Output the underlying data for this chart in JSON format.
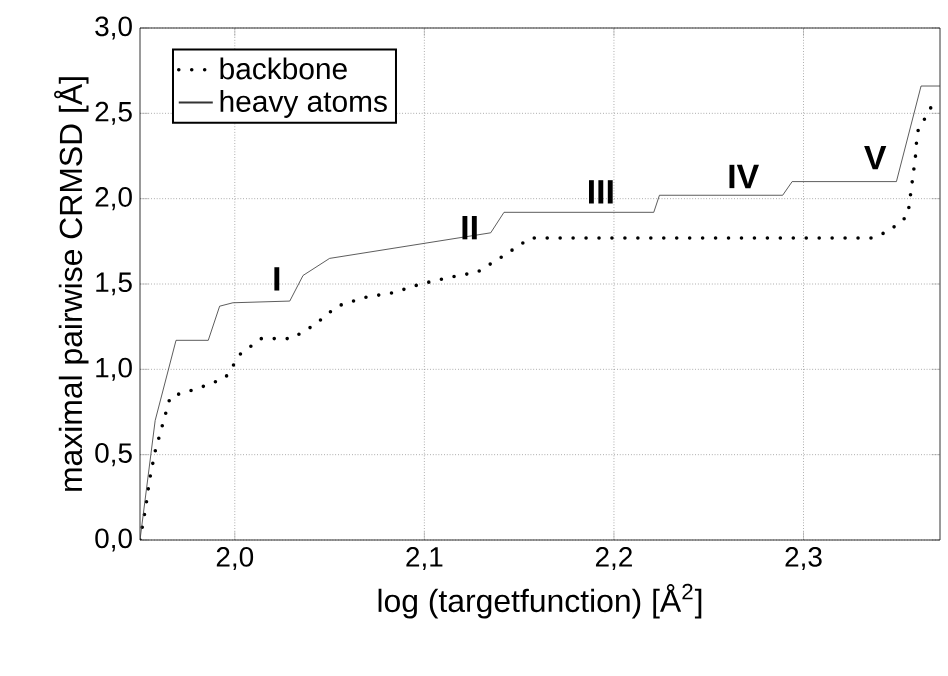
{
  "chart_data": {
    "type": "line",
    "xlabel": "log (targetfunction) [Å$^{2}$]",
    "ylabel": "maximal pairwise CRMSD [Å]",
    "xlim": [
      1.95,
      2.372
    ],
    "ylim": [
      0,
      3
    ],
    "xticks": [
      {
        "value": 2.0,
        "label": "2,0"
      },
      {
        "value": 2.1,
        "label": "2,1"
      },
      {
        "value": 2.2,
        "label": "2,2"
      },
      {
        "value": 2.3,
        "label": "2,3"
      }
    ],
    "yticks": [
      {
        "value": 0,
        "label": "0,0"
      },
      {
        "value": 0.5,
        "label": "0,5"
      },
      {
        "value": 1,
        "label": "1,0"
      },
      {
        "value": 1.5,
        "label": "1,5"
      },
      {
        "value": 2,
        "label": "2,0"
      },
      {
        "value": 2.5,
        "label": "2,5"
      },
      {
        "value": 3,
        "label": "3,0"
      }
    ],
    "grid": true,
    "legend": "top left",
    "marker": "none",
    "series": [
      {
        "name": "backbone",
        "color": "#000000",
        "line_style": "dotted",
        "x": [
          1.95,
          1.953,
          1.955,
          1.958,
          1.962,
          1.966,
          1.981,
          1.995,
          2.003,
          2.014,
          2.03,
          2.042,
          2.054,
          2.068,
          2.084,
          2.098,
          2.114,
          2.128,
          2.141,
          2.156,
          2.336,
          2.345,
          2.355,
          2.357,
          2.359,
          2.36,
          2.368
        ],
        "values": [
          0,
          0.19,
          0.35,
          0.52,
          0.68,
          0.84,
          0.89,
          0.95,
          1.09,
          1.18,
          1.18,
          1.26,
          1.37,
          1.42,
          1.45,
          1.5,
          1.54,
          1.57,
          1.66,
          1.77,
          1.77,
          1.81,
          1.9,
          2.07,
          2.24,
          2.39,
          2.55
        ]
      },
      {
        "name": "heavy atoms",
        "color": "#333333",
        "line_style": "solid",
        "x": [
          1.95,
          1.958,
          1.969,
          1.986,
          1.992,
          1.999,
          2.029,
          2.036,
          2.05,
          2.135,
          2.142,
          2.221,
          2.224,
          2.289,
          2.294,
          2.349,
          2.362,
          2.372
        ],
        "values": [
          0,
          0.7,
          1.17,
          1.17,
          1.37,
          1.39,
          1.4,
          1.55,
          1.65,
          1.8,
          1.92,
          1.92,
          2.02,
          2.02,
          2.1,
          2.1,
          2.66,
          2.66
        ]
      }
    ],
    "annotations": [
      "I",
      "II",
      "III",
      "IV",
      "V"
    ]
  }
}
